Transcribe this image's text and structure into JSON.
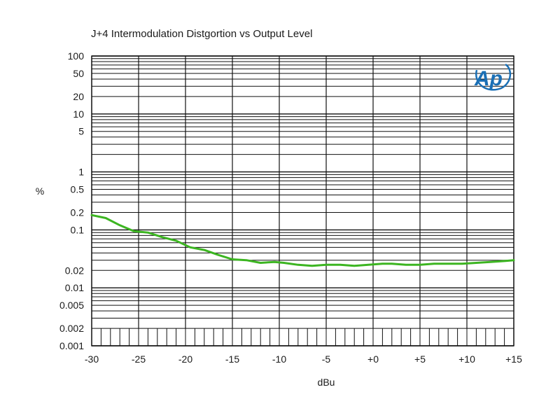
{
  "chart_data": {
    "type": "line",
    "title": "J+4 Intermodulation Distgortion vs Output Level",
    "xlabel": "dBu",
    "ylabel": "%",
    "x_scale": "linear",
    "y_scale": "log",
    "xlim": [
      -30,
      15
    ],
    "ylim": [
      0.001,
      100
    ],
    "grid": true,
    "x_ticks": [
      {
        "value": -30,
        "label": "-30"
      },
      {
        "value": -25,
        "label": "-25"
      },
      {
        "value": -20,
        "label": "-20"
      },
      {
        "value": -15,
        "label": "-15"
      },
      {
        "value": -10,
        "label": "-10"
      },
      {
        "value": -5,
        "label": "-5"
      },
      {
        "value": 0,
        "label": "+0"
      },
      {
        "value": 5,
        "label": "+5"
      },
      {
        "value": 10,
        "label": "+10"
      },
      {
        "value": 15,
        "label": "+15"
      }
    ],
    "y_ticks": [
      {
        "value": 100,
        "label": "100"
      },
      {
        "value": 50,
        "label": "50"
      },
      {
        "value": 20,
        "label": "20"
      },
      {
        "value": 10,
        "label": "10"
      },
      {
        "value": 5,
        "label": "5"
      },
      {
        "value": 1,
        "label": "1"
      },
      {
        "value": 0.5,
        "label": "0.5"
      },
      {
        "value": 0.2,
        "label": "0.2"
      },
      {
        "value": 0.1,
        "label": "0.1"
      },
      {
        "value": 0.02,
        "label": "0.02"
      },
      {
        "value": 0.01,
        "label": "0.01"
      },
      {
        "value": 0.005,
        "label": "0.005"
      },
      {
        "value": 0.002,
        "label": "0.002"
      },
      {
        "value": 0.001,
        "label": "0.001"
      }
    ],
    "series": [
      {
        "color": "#3cb521",
        "x": [
          -30,
          -28.5,
          -27,
          -25.5,
          -24,
          -22.5,
          -21,
          -19.5,
          -18,
          -16.5,
          -15,
          -13.5,
          -12,
          -10.5,
          -9.5,
          -8,
          -6.5,
          -5,
          -3.5,
          -2,
          -0.5,
          1,
          2,
          3.5,
          5,
          6.5,
          8,
          9.5,
          11,
          12.5,
          14,
          15
        ],
        "y": [
          0.18,
          0.16,
          0.12,
          0.095,
          0.09,
          0.075,
          0.065,
          0.05,
          0.045,
          0.037,
          0.031,
          0.03,
          0.027,
          0.028,
          0.027,
          0.025,
          0.024,
          0.025,
          0.025,
          0.024,
          0.025,
          0.026,
          0.026,
          0.025,
          0.025,
          0.026,
          0.026,
          0.026,
          0.027,
          0.028,
          0.029,
          0.03
        ]
      }
    ]
  },
  "logo": {
    "text": "Ap",
    "color": "#1a6fb5"
  }
}
